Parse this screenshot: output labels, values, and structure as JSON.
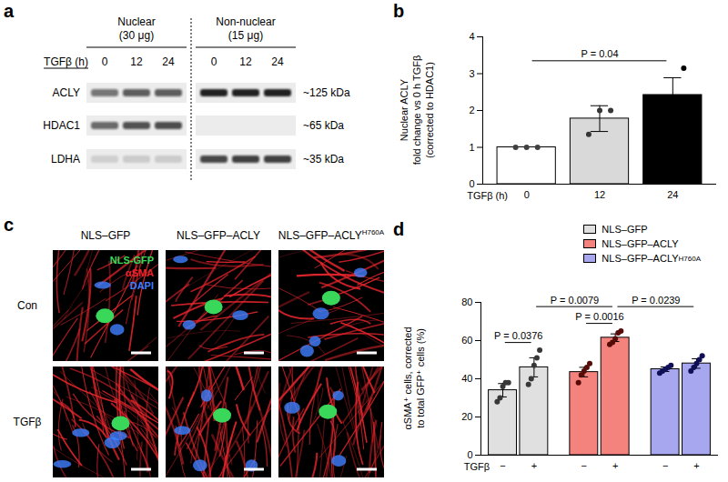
{
  "panels": [
    "a",
    "b",
    "c",
    "d"
  ],
  "blot": {
    "lane_label": "TGFβ (h)",
    "groups": [
      {
        "title": "Nuclear",
        "load": "(30 μg)",
        "lanes": [
          0,
          12,
          24
        ]
      },
      {
        "title": "Non-nuclear",
        "load": "(15 μg)",
        "lanes": [
          0,
          12,
          24
        ]
      }
    ],
    "bands": [
      {
        "name": "ACLY",
        "size": "~125 kDa"
      },
      {
        "name": "HDAC1",
        "size": "~65 kDa"
      },
      {
        "name": "LDHA",
        "size": "~35 kDa"
      }
    ]
  },
  "micrographs": {
    "columns": [
      {
        "text": "NLS–GFP"
      },
      {
        "text": "NLS–GFP–ACLY"
      },
      {
        "text": "NLS–GFP–ACLY",
        "superscript": "H760A"
      }
    ],
    "rows": [
      "Con",
      "TGFβ"
    ],
    "channels": [
      {
        "name": "NLS-GFP",
        "color": "#39d85a"
      },
      {
        "name": "αSMA",
        "color": "#e8262d"
      },
      {
        "name": "DAPI",
        "color": "#3f7fff"
      }
    ]
  },
  "chart_data": [
    {
      "type": "bar",
      "xlabel": "TGFβ (h)",
      "ylabel": [
        "Nuclear ACLY",
        "fold change vs 0 h TGFβ",
        "(corrected to HDAC1)"
      ],
      "categories": [
        0,
        12,
        24
      ],
      "values": [
        1,
        1.78,
        2.42
      ],
      "errors": [
        0,
        0.35,
        0.47
      ],
      "points": [
        [
          1,
          1,
          1
        ],
        [
          1.35,
          2.0,
          2.0
        ],
        [
          1.95,
          2.15,
          3.15
        ]
      ],
      "colors": [
        "#ffffff",
        "#d9d9d9",
        "#000000"
      ],
      "ylim": [
        0,
        4
      ],
      "yticks": [
        0,
        1,
        2,
        3,
        4
      ],
      "comparisons": [
        {
          "from": 0,
          "to": 2,
          "label": "P = 0.04"
        }
      ]
    },
    {
      "type": "bar",
      "xlabel": "TGFβ",
      "ylabel": [
        "αSMA⁺ cells, corrected",
        "to total GFP⁺ cells (%)"
      ],
      "categories": [
        "−",
        "+"
      ],
      "series": [
        {
          "name": "NLS–GFP",
          "color": "#e0e0e0",
          "values": [
            34,
            46
          ],
          "errors": [
            3.5,
            5
          ],
          "points": [
            [
              28,
              30,
              36,
              38,
              38
            ],
            [
              37,
              40,
              47,
              51,
              55
            ]
          ]
        },
        {
          "name": "NLS–GFP–ACLY",
          "color": "#f4837d",
          "values": [
            43.5,
            61.5
          ],
          "errors": [
            2.5,
            2
          ],
          "points": [
            [
              38,
              42,
              44,
              46,
              48
            ],
            [
              58,
              59,
              61,
              64,
              65
            ]
          ]
        },
        {
          "name": "NLS–GFP–ACLY",
          "name_superscript": "H760A",
          "color": "#a7a7ef",
          "values": [
            45,
            48
          ],
          "errors": [
            1.2,
            2.5
          ],
          "points": [
            [
              43,
              44,
              45,
              46,
              47
            ],
            [
              44,
              46,
              48,
              50,
              52
            ]
          ]
        }
      ],
      "ylim": [
        0,
        80
      ],
      "yticks": [
        0,
        20,
        40,
        60,
        80
      ],
      "legend": "top-right",
      "comparisons": [
        {
          "from": [
            0,
            0
          ],
          "to": [
            0,
            1
          ],
          "label": "P = 0.0376"
        },
        {
          "from": [
            1,
            0
          ],
          "to": [
            1,
            1
          ],
          "label": "P = 0.0016"
        },
        {
          "from": [
            0,
            1
          ],
          "to": [
            1,
            1
          ],
          "label": "P = 0.0079"
        },
        {
          "from": [
            1,
            1
          ],
          "to": [
            2,
            1
          ],
          "label": "P = 0.0239"
        }
      ]
    }
  ]
}
